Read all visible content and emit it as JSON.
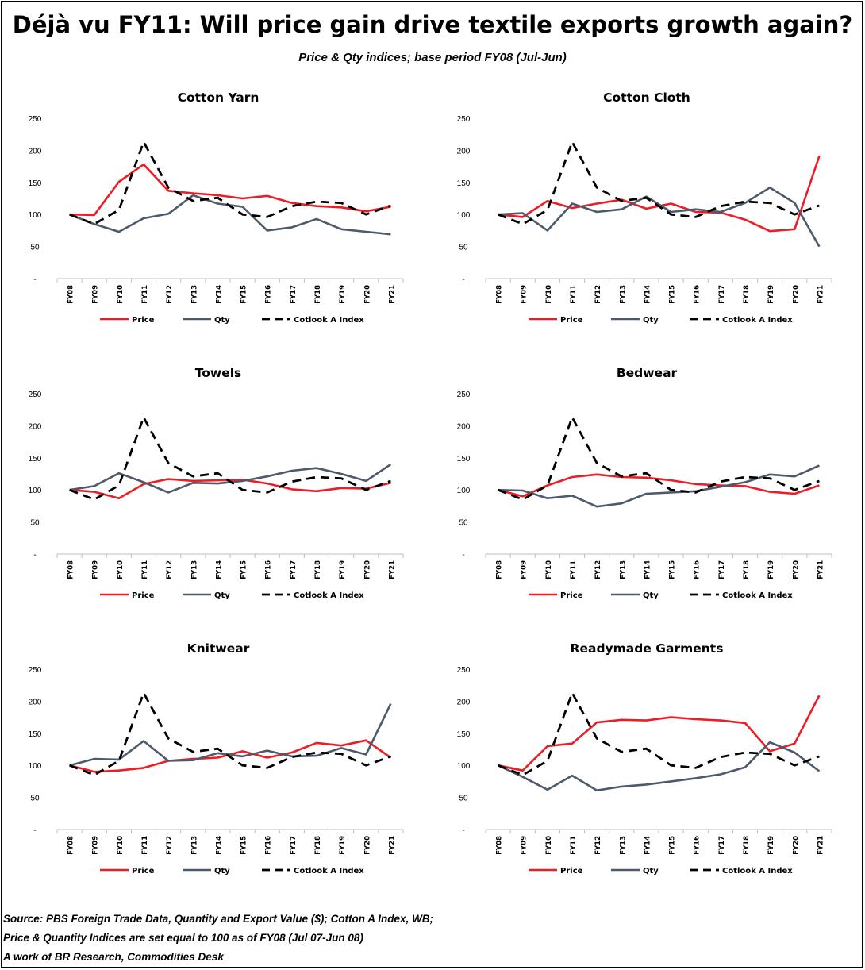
{
  "title": "Déjà vu FY11: Will price gain drive textile exports growth again?",
  "subtitle": "Price & Qty indices; base period FY08 (Jul-Jun)",
  "footer": {
    "line1": "Source: PBS Foreign Trade Data, Quantity and Export Value ($); Cotton A Index, WB;",
    "line2": "Price & Quantity Indices are set equal to 100 as of FY08 (Jul 07-Jun 08)",
    "line3": "A work of BR Research, Commodities Desk"
  },
  "colors": {
    "price": "#ee1c25",
    "qty": "#4d5a6b",
    "cotlook": "#000000"
  },
  "chart_data": [
    {
      "type": "line",
      "title": "Cotton Yarn",
      "x": [
        "FY08",
        "FY09",
        "FY10",
        "FY11",
        "FY12",
        "FY13",
        "FY14",
        "FY15",
        "FY16",
        "FY17",
        "FY18",
        "FY19",
        "FY20",
        "FY21"
      ],
      "ylim": [
        0,
        250
      ],
      "yticks": [
        "-",
        "50",
        "100",
        "150",
        "200",
        "250"
      ],
      "legend_position": "bottom",
      "series": [
        {
          "name": "Price",
          "style": "solid",
          "values": [
            100,
            99,
            151,
            178,
            137,
            133,
            130,
            125,
            129,
            118,
            113,
            111,
            105,
            112
          ]
        },
        {
          "name": "Qty",
          "style": "solid",
          "values": [
            100,
            85,
            73,
            94,
            101,
            130,
            117,
            112,
            75,
            80,
            93,
            77,
            73,
            69
          ]
        },
        {
          "name": "Cotlook A Index",
          "style": "dashed",
          "values": [
            100,
            85,
            107,
            213,
            142,
            121,
            126,
            100,
            96,
            113,
            120,
            118,
            100,
            114
          ]
        }
      ]
    },
    {
      "type": "line",
      "title": "Cotton Cloth",
      "x": [
        "FY08",
        "FY09",
        "FY10",
        "FY11",
        "FY12",
        "FY13",
        "FY14",
        "FY15",
        "FY16",
        "FY17",
        "FY18",
        "FY19",
        "FY20",
        "FY21"
      ],
      "ylim": [
        0,
        250
      ],
      "yticks": [
        "-",
        "50",
        "100",
        "150",
        "200",
        "250"
      ],
      "legend_position": "bottom",
      "series": [
        {
          "name": "Price",
          "style": "solid",
          "values": [
            100,
            96,
            121,
            110,
            117,
            123,
            109,
            117,
            104,
            103,
            92,
            74,
            77,
            191
          ]
        },
        {
          "name": "Qty",
          "style": "solid",
          "values": [
            100,
            102,
            75,
            117,
            104,
            108,
            128,
            104,
            108,
            104,
            118,
            142,
            118,
            50
          ]
        },
        {
          "name": "Cotlook A Index",
          "style": "dashed",
          "values": [
            100,
            85,
            107,
            213,
            142,
            121,
            126,
            100,
            96,
            113,
            120,
            118,
            100,
            114
          ]
        }
      ]
    },
    {
      "type": "line",
      "title": "Towels",
      "x": [
        "FY08",
        "FY09",
        "FY10",
        "FY11",
        "FY12",
        "FY13",
        "FY14",
        "FY15",
        "FY16",
        "FY17",
        "FY18",
        "FY19",
        "FY20",
        "FY21"
      ],
      "ylim": [
        0,
        250
      ],
      "yticks": [
        "-",
        "50",
        "100",
        "150",
        "200",
        "250"
      ],
      "legend_position": "bottom",
      "series": [
        {
          "name": "Price",
          "style": "solid",
          "values": [
            100,
            97,
            87,
            109,
            117,
            114,
            115,
            116,
            110,
            101,
            98,
            103,
            102,
            111
          ]
        },
        {
          "name": "Qty",
          "style": "solid",
          "values": [
            100,
            106,
            126,
            112,
            96,
            111,
            110,
            114,
            121,
            130,
            134,
            125,
            114,
            140
          ]
        },
        {
          "name": "Cotlook A Index",
          "style": "dashed",
          "values": [
            100,
            85,
            107,
            213,
            142,
            121,
            126,
            100,
            96,
            113,
            120,
            118,
            100,
            114
          ]
        }
      ]
    },
    {
      "type": "line",
      "title": "Bedwear",
      "x": [
        "FY08",
        "FY09",
        "FY10",
        "FY11",
        "FY12",
        "FY13",
        "FY14",
        "FY15",
        "FY16",
        "FY17",
        "FY18",
        "FY19",
        "FY20",
        "FY21"
      ],
      "ylim": [
        0,
        250
      ],
      "yticks": [
        "-",
        "50",
        "100",
        "150",
        "200",
        "250"
      ],
      "legend_position": "bottom",
      "series": [
        {
          "name": "Price",
          "style": "solid",
          "values": [
            100,
            90,
            107,
            120,
            124,
            120,
            119,
            115,
            109,
            107,
            106,
            97,
            94,
            107
          ]
        },
        {
          "name": "Qty",
          "style": "solid",
          "values": [
            100,
            99,
            87,
            91,
            74,
            79,
            94,
            96,
            98,
            105,
            112,
            124,
            121,
            138
          ]
        },
        {
          "name": "Cotlook A Index",
          "style": "dashed",
          "values": [
            100,
            85,
            107,
            213,
            142,
            121,
            126,
            100,
            96,
            113,
            120,
            118,
            100,
            114
          ]
        }
      ]
    },
    {
      "type": "line",
      "title": "Knitwear",
      "x": [
        "FY08",
        "FY09",
        "FY10",
        "FY11",
        "FY12",
        "FY13",
        "FY14",
        "FY15",
        "FY16",
        "FY17",
        "FY18",
        "FY19",
        "FY20",
        "FY21"
      ],
      "ylim": [
        0,
        250
      ],
      "yticks": [
        "-",
        "50",
        "100",
        "150",
        "200",
        "250"
      ],
      "legend_position": "bottom",
      "series": [
        {
          "name": "Price",
          "style": "solid",
          "values": [
            100,
            90,
            92,
            96,
            107,
            110,
            112,
            122,
            112,
            120,
            135,
            131,
            139,
            112
          ]
        },
        {
          "name": "Qty",
          "style": "solid",
          "values": [
            100,
            110,
            109,
            138,
            107,
            108,
            119,
            114,
            123,
            114,
            115,
            127,
            117,
            196
          ]
        },
        {
          "name": "Cotlook A Index",
          "style": "dashed",
          "values": [
            100,
            85,
            107,
            213,
            142,
            121,
            126,
            100,
            96,
            113,
            120,
            118,
            100,
            114
          ]
        }
      ]
    },
    {
      "type": "line",
      "title": "Readymade Garments",
      "x": [
        "FY08",
        "FY09",
        "FY10",
        "FY11",
        "FY12",
        "FY13",
        "FY14",
        "FY15",
        "FY16",
        "FY17",
        "FY18",
        "FY19",
        "FY20",
        "FY21"
      ],
      "ylim": [
        0,
        250
      ],
      "yticks": [
        "-",
        "50",
        "100",
        "150",
        "200",
        "250"
      ],
      "legend_position": "bottom",
      "series": [
        {
          "name": "Price",
          "style": "solid",
          "values": [
            100,
            92,
            130,
            134,
            167,
            171,
            170,
            175,
            172,
            170,
            166,
            122,
            134,
            209
          ]
        },
        {
          "name": "Qty",
          "style": "solid",
          "values": [
            100,
            82,
            62,
            84,
            61,
            67,
            70,
            75,
            80,
            86,
            97,
            136,
            120,
            91
          ]
        },
        {
          "name": "Cotlook A Index",
          "style": "dashed",
          "values": [
            100,
            85,
            107,
            213,
            142,
            121,
            126,
            100,
            96,
            113,
            120,
            118,
            100,
            114
          ]
        }
      ]
    }
  ]
}
